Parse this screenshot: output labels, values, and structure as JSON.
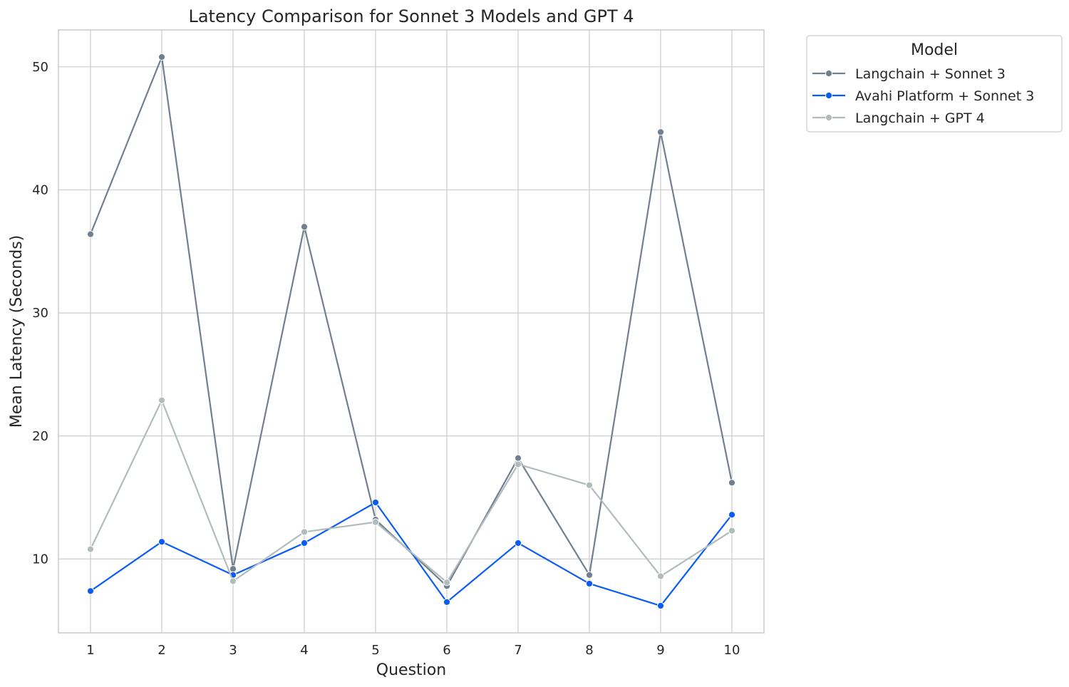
{
  "chart_data": {
    "type": "line",
    "title": "Latency Comparison for Sonnet 3 Models and GPT 4",
    "xlabel": "Question",
    "ylabel": "Mean Latency (Seconds)",
    "x": [
      1,
      2,
      3,
      4,
      5,
      6,
      7,
      8,
      9,
      10
    ],
    "yticks": [
      10,
      20,
      30,
      40,
      50
    ],
    "ylim": [
      4,
      53
    ],
    "xlim": [
      0.55,
      10.45
    ],
    "grid": true,
    "legend": {
      "title": "Model",
      "position": "outside-top-right"
    },
    "series": [
      {
        "name": "Langchain + Sonnet 3",
        "color": "#708090",
        "values": [
          36.4,
          50.8,
          9.2,
          37.0,
          13.2,
          7.8,
          18.2,
          8.7,
          44.7,
          16.2
        ]
      },
      {
        "name": "Avahi Platform + Sonnet 3",
        "color": "#0a5cf5",
        "values": [
          7.4,
          11.4,
          8.7,
          11.3,
          14.6,
          6.5,
          11.3,
          8.0,
          6.2,
          13.6
        ]
      },
      {
        "name": "Langchain + GPT 4",
        "color": "#b2bcbc",
        "values": [
          10.8,
          22.9,
          8.2,
          12.2,
          13.0,
          8.1,
          17.7,
          16.0,
          8.6,
          12.3
        ]
      }
    ]
  }
}
